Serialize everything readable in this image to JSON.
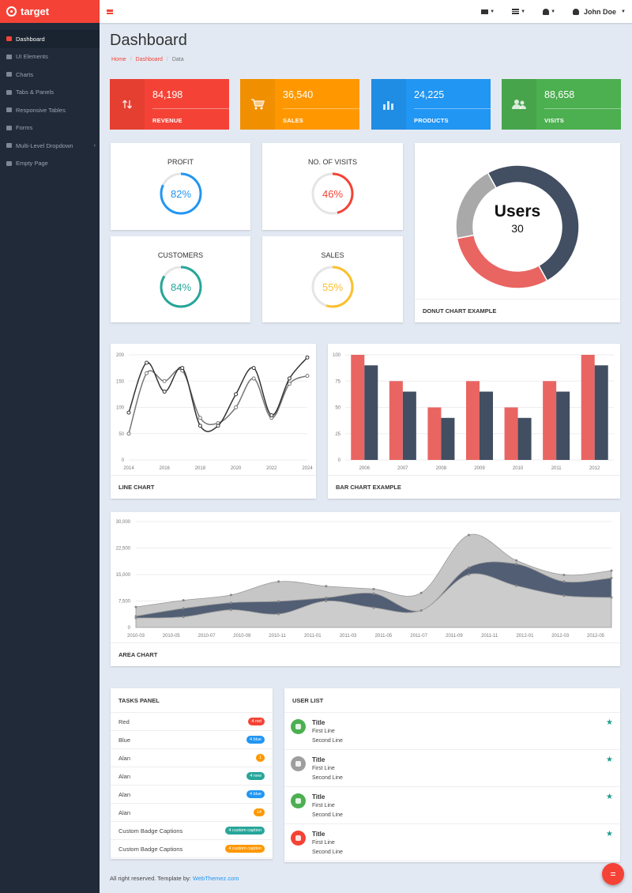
{
  "brand": {
    "name": "target"
  },
  "topbar": {
    "user_name": "John Doe"
  },
  "sidebar": {
    "items": [
      {
        "label": "Dashboard",
        "icon": "dashboard-icon"
      },
      {
        "label": "UI Elements",
        "icon": "desktop-icon"
      },
      {
        "label": "Charts",
        "icon": "chart-icon"
      },
      {
        "label": "Tabs & Panels",
        "icon": "panels-icon"
      },
      {
        "label": "Responsive Tables",
        "icon": "table-icon"
      },
      {
        "label": "Forms",
        "icon": "edit-icon"
      },
      {
        "label": "Multi-Level Dropdown",
        "icon": "sitemap-icon"
      },
      {
        "label": "Empty Page",
        "icon": "page-icon"
      }
    ]
  },
  "header": {
    "title": "Dashboard",
    "breadcrumb": [
      "Home",
      "Dashboard",
      "Data"
    ]
  },
  "stats": [
    {
      "value": "84,198",
      "label": "REVENUE",
      "color": "#f44336",
      "icon": "exchange-icon"
    },
    {
      "value": "36,540",
      "label": "SALES",
      "color": "#ff9800",
      "icon": "cart-icon"
    },
    {
      "value": "24,225",
      "label": "PRODUCTS",
      "color": "#2196f3",
      "icon": "bar-chart-icon"
    },
    {
      "value": "88,658",
      "label": "VISITS",
      "color": "#4caf50",
      "icon": "users-icon"
    }
  ],
  "circles": [
    {
      "title": "PROFIT",
      "percent": 82,
      "label": "82%",
      "color": "#2196f3"
    },
    {
      "title": "NO. OF VISITS",
      "percent": 46,
      "label": "46%",
      "color": "#f44336"
    },
    {
      "title": "CUSTOMERS",
      "percent": 84,
      "label": "84%",
      "color": "#26a69a"
    },
    {
      "title": "SALES",
      "percent": 55,
      "label": "55%",
      "color": "#fbc02d"
    }
  ],
  "donut": {
    "title": "Users",
    "value": "30",
    "footer": "DONUT CHART EXAMPLE"
  },
  "line_footer": "LINE CHART",
  "bar_footer": "BAR CHART EXAMPLE",
  "area_footer": "AREA CHART",
  "chart_data": [
    {
      "type": "pie",
      "title": "Users",
      "values": [
        50,
        30,
        20
      ],
      "colors": [
        "#424e61",
        "#e96562",
        "#a9a9a9"
      ]
    },
    {
      "type": "line",
      "x": [
        "2014",
        "2015",
        "2016",
        "2017",
        "2018",
        "2019",
        "2020",
        "2021",
        "2022",
        "2023",
        "2024"
      ],
      "x_ticks": [
        "2014",
        "2016",
        "2018",
        "2020",
        "2022",
        "2024"
      ],
      "ylim": [
        0,
        200
      ],
      "y_ticks": [
        "0",
        "50",
        "100",
        "150",
        "200"
      ],
      "series": [
        {
          "values": [
            50,
            165,
            150,
            170,
            80,
            70,
            100,
            155,
            80,
            145,
            160
          ],
          "color": "#777"
        },
        {
          "values": [
            90,
            185,
            130,
            175,
            65,
            65,
            125,
            175,
            85,
            155,
            195
          ],
          "color": "#333"
        }
      ]
    },
    {
      "type": "bar",
      "categories": [
        "2006",
        "2007",
        "2008",
        "2009",
        "2010",
        "2011",
        "2012"
      ],
      "ylim": [
        0,
        100
      ],
      "y_ticks": [
        "0",
        "25",
        "50",
        "75",
        "100"
      ],
      "series": [
        {
          "values": [
            100,
            75,
            50,
            75,
            50,
            75,
            100
          ],
          "color": "#e96562"
        },
        {
          "values": [
            90,
            65,
            40,
            65,
            40,
            65,
            90
          ],
          "color": "#424e61"
        }
      ]
    },
    {
      "type": "area",
      "x": [
        "2010-01",
        "2010-04",
        "2010-07",
        "2010-10",
        "2011-01",
        "2011-04",
        "2011-07",
        "2011-10",
        "2012-01",
        "2012-04",
        "2012-06"
      ],
      "x_ticks": [
        "2010-03",
        "2010-05",
        "2010-07",
        "2010-09",
        "2010-11",
        "2011-01",
        "2011-03",
        "2011-05",
        "2011-07",
        "2011-09",
        "2011-11",
        "2012-01",
        "2012-03",
        "2012-05"
      ],
      "ylim": [
        0,
        30000
      ],
      "y_ticks": [
        "0",
        "7,500",
        "15,000",
        "22,500",
        "30,000"
      ],
      "series": [
        {
          "values": [
            2700,
            3000,
            5000,
            3800,
            7500,
            5600,
            4800,
            15000,
            11800,
            9000,
            8500
          ],
          "color": "#cccccc"
        },
        {
          "values": [
            500,
            2400,
            2000,
            3600,
            900,
            4000,
            0,
            2000,
            6200,
            4000,
            5500
          ],
          "color": "#515e74"
        },
        {
          "values": [
            2600,
            2300,
            2200,
            5600,
            3300,
            1300,
            5000,
            9200,
            1000,
            1900,
            2100
          ],
          "color": "#c6c6c6"
        }
      ]
    }
  ],
  "tasks": {
    "title": "TASKS PANEL",
    "items": [
      {
        "label": "Red",
        "badge": "4 red",
        "color": "#f44336"
      },
      {
        "label": "Blue",
        "badge": "4 blue",
        "color": "#2196f3"
      },
      {
        "label": "Alan",
        "badge": "1",
        "color": "#ff9800"
      },
      {
        "label": "Alan",
        "badge": "4 new",
        "color": "#26a69a"
      },
      {
        "label": "Alan",
        "badge": "4 blue",
        "color": "#2196f3"
      },
      {
        "label": "Alan",
        "badge": "14",
        "color": "#ff9800"
      },
      {
        "label": "Custom Badge Captions",
        "badge": "4 custom caption",
        "color": "#26a69a"
      },
      {
        "label": "Custom Badge Captions",
        "badge": "4 custom caption",
        "color": "#ff9800"
      }
    ]
  },
  "users": {
    "title": "USER LIST",
    "items": [
      {
        "title": "Title",
        "line1": "First Line",
        "line2": "Second Line",
        "color": "#4caf50",
        "icon": "leaf-icon"
      },
      {
        "title": "Title",
        "line1": "First Line",
        "line2": "Second Line",
        "color": "#9e9e9e",
        "icon": "folder-icon"
      },
      {
        "title": "Title",
        "line1": "First Line",
        "line2": "Second Line",
        "color": "#4caf50",
        "icon": "leaf-icon"
      },
      {
        "title": "Title",
        "line1": "First Line",
        "line2": "Second Line",
        "color": "#f44336",
        "icon": "play-icon"
      }
    ]
  },
  "footer": {
    "text": "All right reserved. Template by: ",
    "link": "WebThemez.com"
  }
}
